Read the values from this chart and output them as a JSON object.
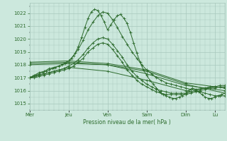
{
  "bg_color": "#cce8dd",
  "grid_color": "#a8c8bc",
  "line_color": "#2d6b2d",
  "ylabel_text": "Pression niveau de la mer( hPa )",
  "ylim": [
    1014.5,
    1022.8
  ],
  "yticks": [
    1015,
    1016,
    1017,
    1018,
    1019,
    1020,
    1021,
    1022
  ],
  "day_labels": [
    "Mer",
    "Jeu",
    "Ven",
    "Sam",
    "Dim",
    "Lu"
  ],
  "day_positions": [
    0,
    48,
    96,
    144,
    192,
    228
  ],
  "xlim": [
    0,
    240
  ],
  "lines": [
    {
      "x": [
        0,
        4,
        8,
        12,
        16,
        20,
        24,
        28,
        32,
        36,
        40,
        44,
        48,
        52,
        56,
        60,
        64,
        68,
        72,
        76,
        80,
        84,
        88,
        92,
        96,
        100,
        104,
        108,
        112,
        116,
        120,
        124,
        128,
        132,
        136,
        140,
        144,
        148,
        152,
        156,
        160,
        164,
        168,
        172,
        176,
        180,
        184,
        188,
        192,
        196,
        200,
        204,
        208,
        212,
        216,
        220,
        224,
        228,
        232,
        236,
        240
      ],
      "y": [
        1017.0,
        1017.1,
        1017.2,
        1017.3,
        1017.4,
        1017.5,
        1017.6,
        1017.7,
        1017.8,
        1017.9,
        1018.0,
        1018.1,
        1018.2,
        1018.5,
        1018.9,
        1019.4,
        1020.1,
        1020.9,
        1021.6,
        1022.1,
        1022.3,
        1022.2,
        1021.8,
        1021.3,
        1020.7,
        1021.1,
        1021.5,
        1021.8,
        1021.9,
        1021.6,
        1021.2,
        1020.5,
        1019.7,
        1018.9,
        1018.2,
        1017.6,
        1017.2,
        1016.8,
        1016.5,
        1016.2,
        1015.9,
        1015.7,
        1015.6,
        1015.5,
        1015.4,
        1015.4,
        1015.5,
        1015.6,
        1015.8,
        1016.0,
        1016.2,
        1016.1,
        1015.9,
        1015.7,
        1015.5,
        1015.4,
        1015.4,
        1015.5,
        1015.6,
        1015.7,
        1015.8
      ]
    },
    {
      "x": [
        0,
        6,
        12,
        18,
        24,
        30,
        36,
        42,
        48,
        54,
        60,
        66,
        72,
        78,
        84,
        90,
        96,
        102,
        108,
        114,
        120,
        126,
        132,
        138,
        144,
        150,
        156,
        162,
        168,
        174,
        180,
        186,
        192,
        198,
        204,
        210,
        216,
        222,
        228,
        234,
        240
      ],
      "y": [
        1017.0,
        1017.2,
        1017.4,
        1017.5,
        1017.7,
        1017.8,
        1017.9,
        1018.1,
        1018.3,
        1018.7,
        1019.2,
        1019.9,
        1020.7,
        1021.3,
        1021.8,
        1022.1,
        1022.0,
        1021.5,
        1020.9,
        1020.2,
        1019.6,
        1019.0,
        1018.5,
        1018.0,
        1017.6,
        1017.3,
        1017.0,
        1016.8,
        1016.6,
        1016.5,
        1016.4,
        1016.3,
        1016.2,
        1016.1,
        1016.0,
        1015.9,
        1015.8,
        1015.7,
        1015.6,
        1015.6,
        1015.6
      ]
    },
    {
      "x": [
        0,
        48,
        96,
        144,
        192,
        240
      ],
      "y": [
        1018.0,
        1018.1,
        1018.0,
        1017.5,
        1016.5,
        1015.8
      ]
    },
    {
      "x": [
        0,
        48,
        96,
        144,
        192,
        240
      ],
      "y": [
        1018.1,
        1018.2,
        1018.0,
        1017.3,
        1016.4,
        1016.0
      ]
    },
    {
      "x": [
        0,
        48,
        96,
        144,
        192,
        240
      ],
      "y": [
        1018.2,
        1018.3,
        1018.1,
        1017.6,
        1016.6,
        1016.2
      ]
    },
    {
      "x": [
        0,
        6,
        12,
        18,
        24,
        30,
        36,
        42,
        48,
        54,
        60,
        66,
        72,
        78,
        84,
        90,
        96,
        102,
        108,
        114,
        120,
        126,
        132,
        138,
        144,
        150,
        156,
        162,
        168,
        174,
        180,
        186,
        192,
        198,
        204,
        210,
        216,
        222,
        228,
        234,
        240
      ],
      "y": [
        1017.0,
        1017.1,
        1017.2,
        1017.3,
        1017.4,
        1017.5,
        1017.6,
        1017.7,
        1017.9,
        1018.1,
        1018.4,
        1018.8,
        1019.3,
        1019.7,
        1020.0,
        1020.1,
        1020.0,
        1019.6,
        1019.1,
        1018.6,
        1018.0,
        1017.5,
        1017.1,
        1016.8,
        1016.5,
        1016.3,
        1016.1,
        1016.0,
        1015.9,
        1015.8,
        1015.8,
        1015.8,
        1015.8,
        1015.9,
        1016.0,
        1016.1,
        1016.2,
        1016.3,
        1016.3,
        1016.4,
        1016.4
      ]
    },
    {
      "x": [
        0,
        6,
        12,
        18,
        24,
        30,
        36,
        42,
        48,
        54,
        60,
        66,
        72,
        78,
        84,
        90,
        96,
        102,
        108,
        114,
        120,
        126,
        132,
        138,
        144,
        150,
        156,
        162,
        168,
        174,
        180,
        186,
        192,
        198,
        204,
        210,
        216,
        222,
        228,
        234,
        240
      ],
      "y": [
        1017.0,
        1017.0,
        1017.1,
        1017.2,
        1017.3,
        1017.4,
        1017.5,
        1017.6,
        1017.7,
        1017.9,
        1018.2,
        1018.5,
        1019.0,
        1019.3,
        1019.6,
        1019.7,
        1019.6,
        1019.2,
        1018.7,
        1018.2,
        1017.6,
        1017.2,
        1016.8,
        1016.5,
        1016.3,
        1016.1,
        1015.9,
        1015.8,
        1015.7,
        1015.7,
        1015.7,
        1015.7,
        1015.7,
        1015.8,
        1015.9,
        1016.0,
        1016.1,
        1016.2,
        1016.2,
        1016.3,
        1016.3
      ]
    },
    {
      "x": [
        0,
        48,
        96,
        144,
        192,
        228,
        240
      ],
      "y": [
        1017.0,
        1017.8,
        1017.5,
        1016.8,
        1016.0,
        1016.3,
        1016.2
      ]
    }
  ]
}
